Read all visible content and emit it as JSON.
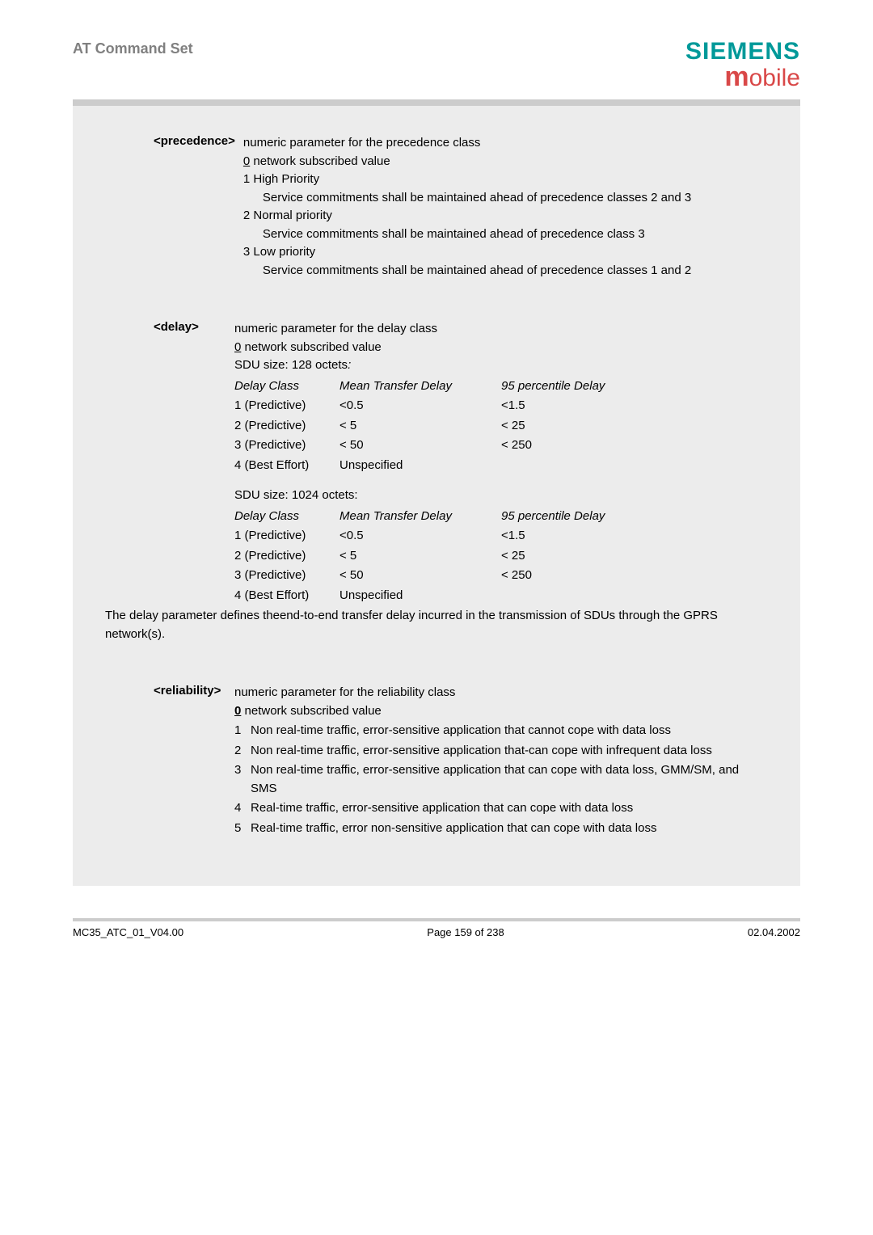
{
  "header": {
    "title": "AT Command Set"
  },
  "logo": {
    "brand": "SIEMENS",
    "m": "m",
    "obile": "obile"
  },
  "precedence": {
    "label": "<precedence>",
    "intro": "numeric parameter for the precedence class",
    "zero_u": "0",
    "zero_rest": " network subscribed value",
    "one": "1 High Priority",
    "one_desc": "Service commitments shall be maintained ahead of precedence classes 2 and 3",
    "two": "2 Normal priority",
    "two_desc": "Service commitments shall be maintained ahead of precedence class 3",
    "three": "3 Low priority",
    "three_desc": "Service commitments shall be maintained ahead of precedence classes 1 and 2"
  },
  "delay": {
    "label": "<delay>",
    "intro": "numeric parameter for the delay class",
    "zero_u": "0",
    "zero_rest": " network subscribed value",
    "sdu128_pre": "SDU size: 128 octets",
    "sdu128_col": ":",
    "hdr_dc": "Delay Class",
    "hdr_mt": "Mean Transfer Delay",
    "hdr_95": "95 percentile Delay",
    "r1c1": "1  (Predictive)",
    "r1c2": "<0.5",
    "r1c3": "<1.5",
    "r2c1": "2  (Predictive)",
    "r2c2": "< 5",
    "r2c3": "< 25",
    "r3c1": "3  (Predictive)",
    "r3c2": "< 50",
    "r3c3": "< 250",
    "r4c1": "4  (Best Effort)",
    "r4c2": "Unspecified",
    "r4c3": "",
    "sdu1024": "SDU size: 1024 octets:",
    "note": "The delay parameter defines theend-to-end transfer delay incurred in the transmission of SDUs through the GPRS network(s)."
  },
  "reliability": {
    "label": "<reliability>",
    "intro": "numeric parameter for the reliability class",
    "zero_u": "0",
    "zero_rest": " network subscribed value",
    "i1": "Non real-time traffic, error-sensitive application that cannot cope with data loss",
    "i2": "Non real-time traffic, error-sensitive application that-can cope with infrequent data loss",
    "i3": "Non real-time traffic, error-sensitive application that can cope with data loss, GMM/SM, and SMS",
    "i4": "Real-time traffic, error-sensitive application that can cope with data loss",
    "i5": "Real-time traffic, error non-sensitive application that can cope with data loss"
  },
  "footer": {
    "left": "MC35_ATC_01_V04.00",
    "center": "Page 159 of 238",
    "right": "02.04.2002"
  }
}
